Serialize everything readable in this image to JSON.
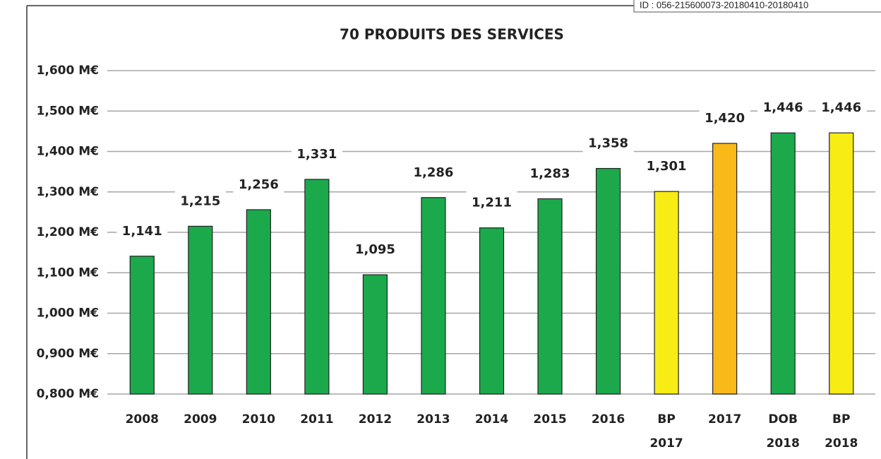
{
  "chart_data": {
    "type": "bar",
    "title": "70 PRODUITS DES SERVICES",
    "annotation": "ID : 056-215600073-20180410-20180410",
    "categories": [
      "2008",
      "2009",
      "2010",
      "2011",
      "2012",
      "2013",
      "2014",
      "2015",
      "2016",
      "BP 2017",
      "2017",
      "DOB 2018",
      "BP 2018"
    ],
    "values": [
      1.141,
      1.215,
      1.256,
      1.331,
      1.095,
      1.286,
      1.211,
      1.283,
      1.358,
      1.301,
      1.42,
      1.446,
      1.446
    ],
    "value_labels": [
      "1,141",
      "1,215",
      "1,256",
      "1,331",
      "1,095",
      "1,286",
      "1,211",
      "1,283",
      "1,358",
      "1,301",
      "1,420",
      "1,446",
      "1,446"
    ],
    "colors": [
      "#1ba94c",
      "#1ba94c",
      "#1ba94c",
      "#1ba94c",
      "#1ba94c",
      "#1ba94c",
      "#1ba94c",
      "#1ba94c",
      "#1ba94c",
      "#f7ec13",
      "#f8b919",
      "#1ba94c",
      "#f7ec13"
    ],
    "ylim": [
      0.8,
      1.6
    ],
    "yticks": [
      {
        "value": 0.8,
        "label": "0,800 M€"
      },
      {
        "value": 0.9,
        "label": "0,900 M€"
      },
      {
        "value": 1.0,
        "label": "1,000 M€"
      },
      {
        "value": 1.1,
        "label": "1,100 M€"
      },
      {
        "value": 1.2,
        "label": "1,200 M€"
      },
      {
        "value": 1.3,
        "label": "1,300 M€"
      },
      {
        "value": 1.4,
        "label": "1,400 M€"
      },
      {
        "value": 1.5,
        "label": "1,500 M€"
      },
      {
        "value": 1.6,
        "label": "1,600 M€"
      }
    ],
    "grid": true
  }
}
